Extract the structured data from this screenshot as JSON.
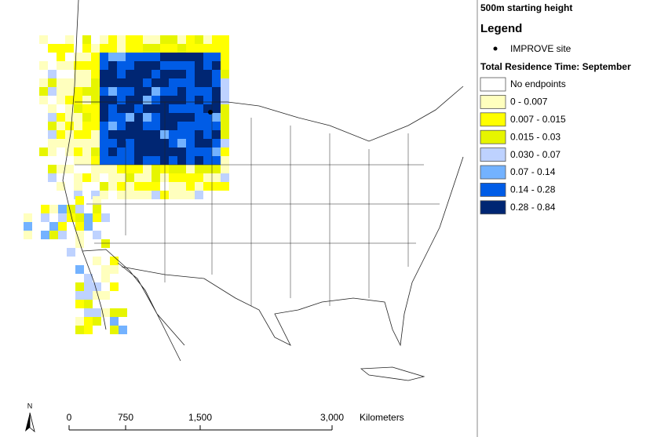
{
  "map": {
    "title": "500m starting height",
    "north_label": "N",
    "scale_bar": {
      "ticks": [
        "0",
        "750",
        "1,500",
        "3,000"
      ],
      "unit": "Kilometers"
    }
  },
  "legend": {
    "title": "Legend",
    "site": "IMPROVE site",
    "section": "Total Residence Time: September",
    "classes": [
      {
        "label": "No endpoints",
        "color": "#ffffff"
      },
      {
        "label": "0 - 0.007",
        "color": "#ffffbe"
      },
      {
        "label": "0.007 - 0.015",
        "color": "#ffff00"
      },
      {
        "label": "0.015 - 0.03",
        "color": "#e6f500"
      },
      {
        "label": "0.030 - 0.07",
        "color": "#bed2ff"
      },
      {
        "label": "0.07 - 0.14",
        "color": "#73b2ff"
      },
      {
        "label": "0.14 - 0.28",
        "color": "#005ce6"
      },
      {
        "label": "0.28 - 0.84",
        "color": "#002673"
      }
    ]
  }
}
